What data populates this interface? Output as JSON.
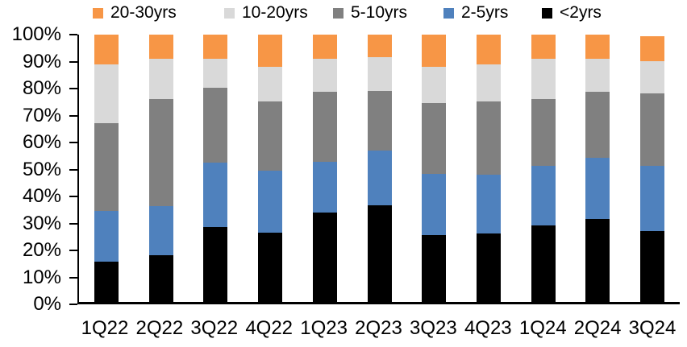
{
  "chart_data": {
    "type": "bar",
    "variant": "stacked-100-percent",
    "title": "",
    "categories": [
      "1Q22",
      "2Q22",
      "3Q22",
      "4Q22",
      "1Q23",
      "2Q23",
      "3Q23",
      "4Q23",
      "1Q24",
      "2Q24",
      "3Q24"
    ],
    "series": [
      {
        "name": "<2yrs",
        "color": "#000000",
        "values": [
          15,
          17.5,
          28,
          26,
          33.5,
          36,
          25,
          25.5,
          28.5,
          31,
          26.5
        ]
      },
      {
        "name": "2-5yrs",
        "color": "#4F81BD",
        "values": [
          19,
          18.5,
          24,
          23,
          19,
          20.5,
          23,
          22,
          22.5,
          23,
          24.5
        ]
      },
      {
        "name": "5-10yrs",
        "color": "#808080",
        "values": [
          33,
          40,
          28,
          26,
          26,
          22.5,
          26.5,
          27.5,
          25,
          24.5,
          27
        ]
      },
      {
        "name": "10-20yrs",
        "color": "#D9D9D9",
        "values": [
          22,
          15,
          11,
          13,
          12.5,
          12.5,
          13.5,
          14,
          15,
          12.5,
          12
        ]
      },
      {
        "name": "20-30yrs",
        "color": "#F79646",
        "values": [
          11,
          9,
          9,
          12,
          9,
          8.5,
          12,
          11,
          9,
          9,
          9.5
        ]
      }
    ],
    "stack_order_bottom_to_top": [
      "<2yrs",
      "2-5yrs",
      "5-10yrs",
      "10-20yrs",
      "20-30yrs"
    ],
    "legend": {
      "position": "top",
      "labels": [
        "20-30yrs",
        "10-20yrs",
        "5-10yrs",
        "2-5yrs",
        "<2yrs"
      ]
    },
    "y_axis": {
      "min": 0,
      "max": 100,
      "step": 10,
      "unit": "percent",
      "tick_labels": [
        "0%",
        "10%",
        "20%",
        "30%",
        "40%",
        "50%",
        "60%",
        "70%",
        "80%",
        "90%",
        "100%"
      ]
    },
    "x_axis": {
      "label": ""
    },
    "grid": false,
    "background": "#ffffff",
    "axis_color": "#000000"
  }
}
